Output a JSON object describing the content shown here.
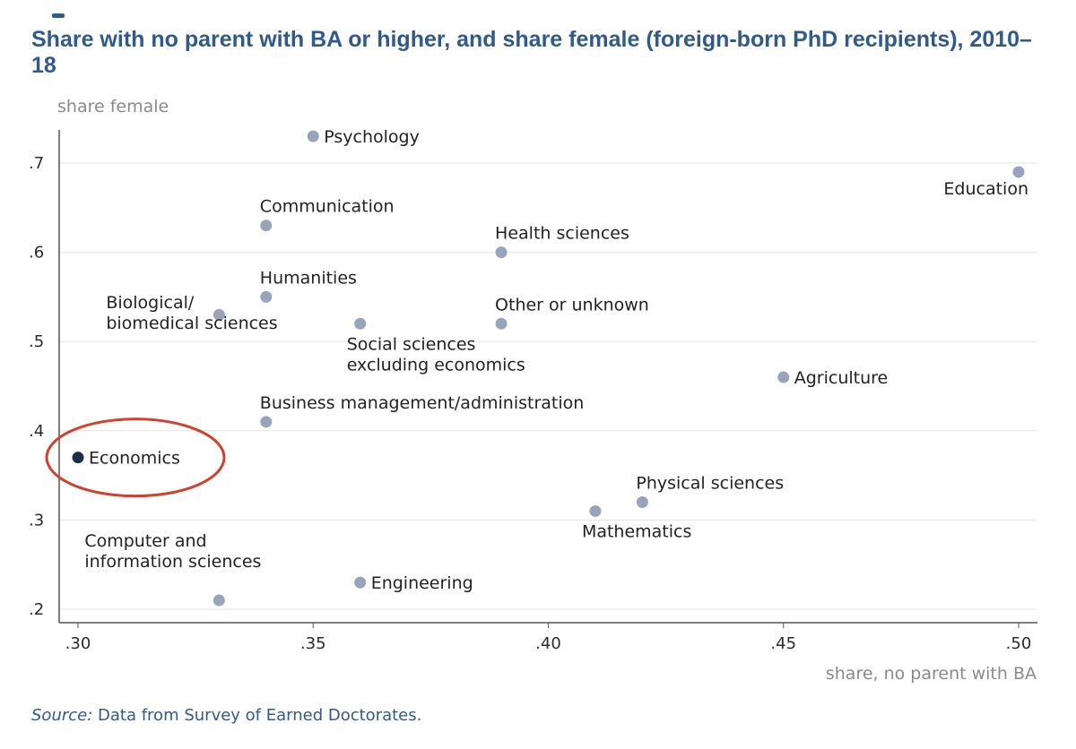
{
  "chart_data": {
    "type": "scatter",
    "title": "Share with no parent with BA or higher, and share female (foreign-born PhD recipients), 2010–18",
    "xlabel": "share, no parent with BA",
    "ylabel": "share female",
    "xlim": [
      0.3,
      0.5
    ],
    "ylim": [
      0.2,
      0.73
    ],
    "x_ticks": [
      {
        "value": 0.3,
        "label": ".30"
      },
      {
        "value": 0.35,
        "label": ".35"
      },
      {
        "value": 0.4,
        "label": ".40"
      },
      {
        "value": 0.45,
        "label": ".45"
      },
      {
        "value": 0.5,
        "label": ".50"
      }
    ],
    "y_ticks": [
      {
        "value": 0.2,
        "label": ".2"
      },
      {
        "value": 0.3,
        "label": ".3"
      },
      {
        "value": 0.4,
        "label": ".4"
      },
      {
        "value": 0.5,
        "label": ".5"
      },
      {
        "value": 0.6,
        "label": ".6"
      },
      {
        "value": 0.7,
        "label": ".7"
      }
    ],
    "grid": true,
    "highlight": "Economics",
    "points": [
      {
        "label": "Psychology",
        "lines": [
          "Psychology"
        ],
        "x": 0.35,
        "y": 0.73,
        "anchor": "right"
      },
      {
        "label": "Education",
        "lines": [
          "Education"
        ],
        "x": 0.5,
        "y": 0.69,
        "anchor": "below-left"
      },
      {
        "label": "Communication",
        "lines": [
          "Communication"
        ],
        "x": 0.34,
        "y": 0.63,
        "anchor": "above"
      },
      {
        "label": "Health sciences",
        "lines": [
          "Health sciences"
        ],
        "x": 0.39,
        "y": 0.6,
        "anchor": "above"
      },
      {
        "label": "Humanities",
        "lines": [
          "Humanities"
        ],
        "x": 0.34,
        "y": 0.55,
        "anchor": "above"
      },
      {
        "label": "Biological/ biomedical sciences",
        "lines": [
          "Biological/",
          "biomedical sciences"
        ],
        "x": 0.33,
        "y": 0.53,
        "anchor": "left"
      },
      {
        "label": "Social sciences excluding economics",
        "lines": [
          "Social sciences",
          "excluding economics"
        ],
        "x": 0.36,
        "y": 0.52,
        "anchor": "below"
      },
      {
        "label": "Other or unknown",
        "lines": [
          "Other or unknown"
        ],
        "x": 0.39,
        "y": 0.52,
        "anchor": "above"
      },
      {
        "label": "Agriculture",
        "lines": [
          "Agriculture"
        ],
        "x": 0.45,
        "y": 0.46,
        "anchor": "right"
      },
      {
        "label": "Business management/administration",
        "lines": [
          "Business management/administration"
        ],
        "x": 0.34,
        "y": 0.41,
        "anchor": "above"
      },
      {
        "label": "Economics",
        "lines": [
          "Economics"
        ],
        "x": 0.3,
        "y": 0.37,
        "anchor": "right"
      },
      {
        "label": "Physical sciences",
        "lines": [
          "Physical sciences"
        ],
        "x": 0.42,
        "y": 0.32,
        "anchor": "above"
      },
      {
        "label": "Mathematics",
        "lines": [
          "Mathematics"
        ],
        "x": 0.41,
        "y": 0.31,
        "anchor": "below"
      },
      {
        "label": "Computer and information sciences",
        "lines": [
          "Computer and",
          "information sciences"
        ],
        "x": 0.33,
        "y": 0.21,
        "anchor": "above-left"
      },
      {
        "label": "Engineering",
        "lines": [
          "Engineering"
        ],
        "x": 0.36,
        "y": 0.23,
        "anchor": "right"
      }
    ]
  },
  "colors": {
    "title": "#2f5a8a",
    "point": "#98a4bb",
    "highlight_point": "#1b2e48",
    "highlight_ring": "#d2402e",
    "grid": "#e4e4e4",
    "axis": "#555555",
    "axis_label": "#8a8a8a"
  },
  "source": {
    "prefix": "Source:",
    "text": " Data from Survey of Earned Doctorates."
  }
}
